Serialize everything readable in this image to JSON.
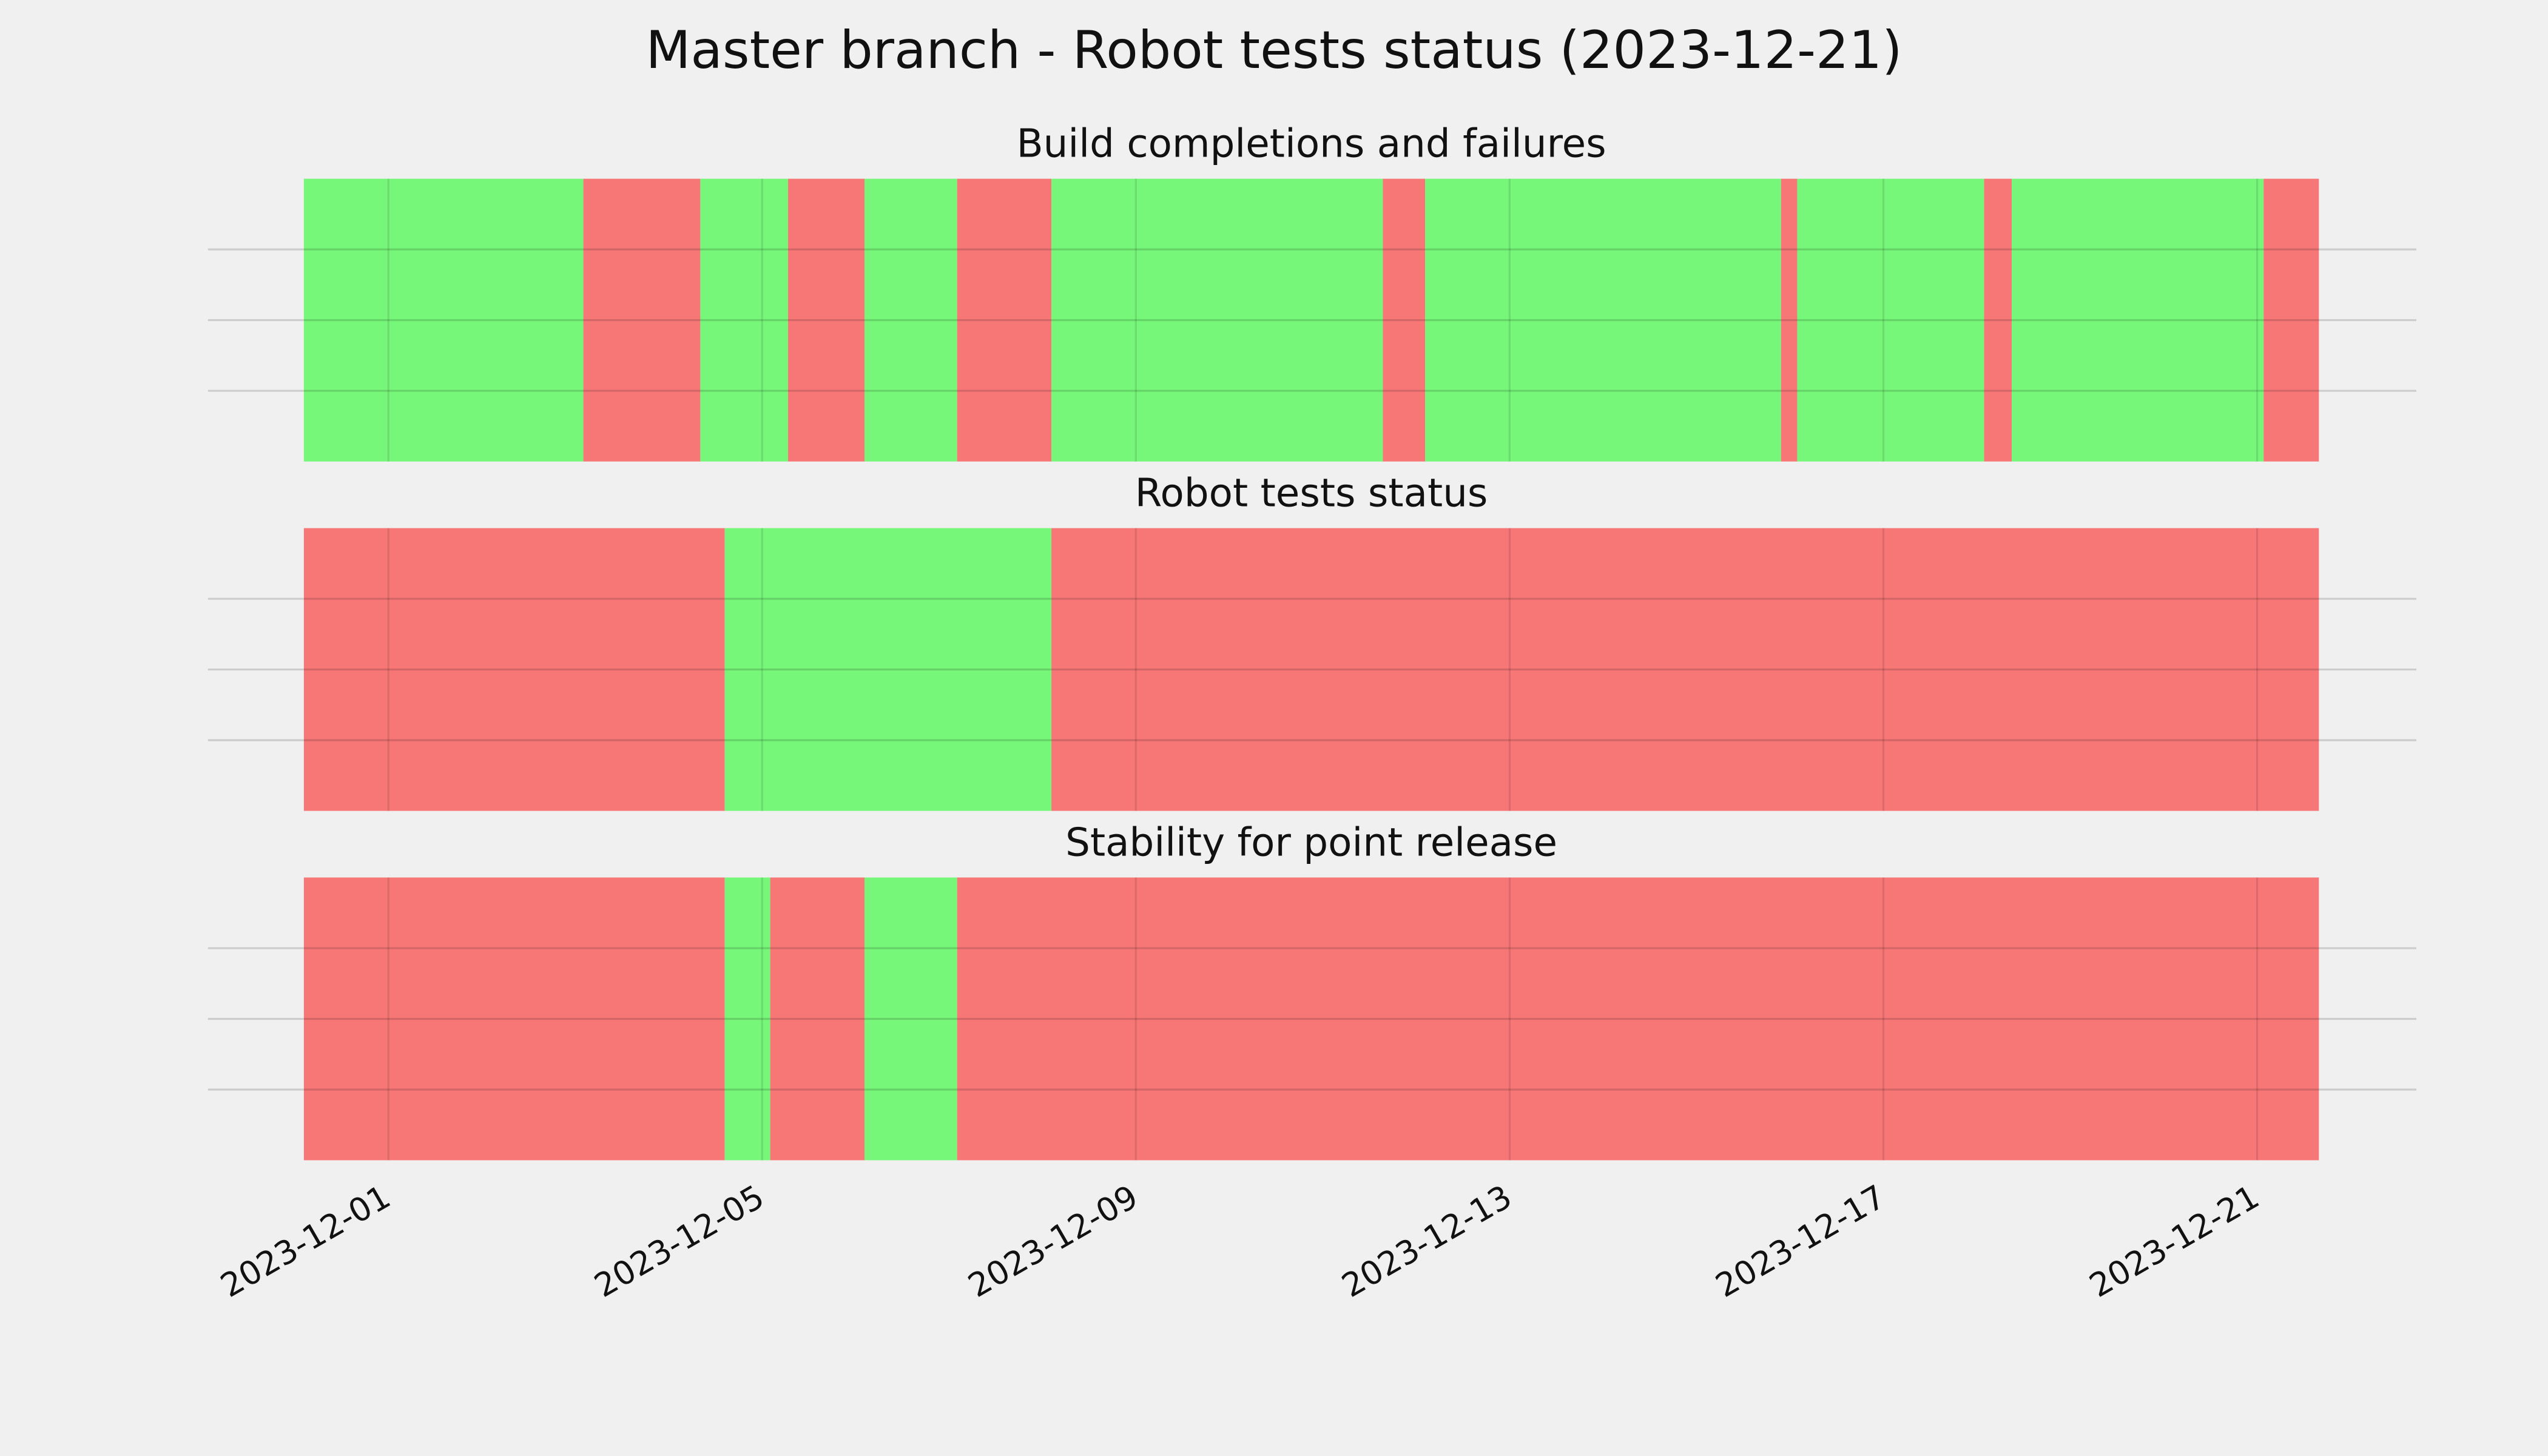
{
  "chart_data": {
    "type": "timeline",
    "title": "Master branch - Robot tests status (2023-12-21)",
    "xlim": [
      "2023-11-30T02:18",
      "2023-12-21T15:51"
    ],
    "xticks": [
      "2023-12-01",
      "2023-12-05",
      "2023-12-09",
      "2023-12-13",
      "2023-12-17",
      "2023-12-21"
    ],
    "ylim": [
      0,
      1
    ],
    "yticks": [
      0.25,
      0.5,
      0.75
    ],
    "grid": true,
    "panels": [
      {
        "title": "Build completions and failures",
        "segments": [
          {
            "start": "2023-11-30T02:18",
            "end": "2023-12-03T02:05",
            "color": "#77f77a"
          },
          {
            "start": "2023-12-03T02:05",
            "end": "2023-12-04T08:08",
            "color": "#f77777"
          },
          {
            "start": "2023-12-04T08:08",
            "end": "2023-12-05T06:40",
            "color": "#77f77a"
          },
          {
            "start": "2023-12-05T06:40",
            "end": "2023-12-06T02:18",
            "color": "#f77777"
          },
          {
            "start": "2023-12-06T02:18",
            "end": "2023-12-07T02:05",
            "color": "#77f77a"
          },
          {
            "start": "2023-12-07T02:05",
            "end": "2023-12-08T02:18",
            "color": "#f77777"
          },
          {
            "start": "2023-12-08T02:18",
            "end": "2023-12-11T15:26",
            "color": "#77f77a"
          },
          {
            "start": "2023-12-11T15:26",
            "end": "2023-12-12T02:18",
            "color": "#f77777"
          },
          {
            "start": "2023-12-12T02:18",
            "end": "2023-12-15T21:42",
            "color": "#77f77a"
          },
          {
            "start": "2023-12-15T21:42",
            "end": "2023-12-16T01:52",
            "color": "#f77777"
          },
          {
            "start": "2023-12-16T01:52",
            "end": "2023-12-18T01:52",
            "color": "#77f77a"
          },
          {
            "start": "2023-12-18T01:52",
            "end": "2023-12-18T08:58",
            "color": "#f77777"
          },
          {
            "start": "2023-12-18T08:58",
            "end": "2023-12-21T01:40",
            "color": "#77f77a"
          },
          {
            "start": "2023-12-21T01:40",
            "end": "2023-12-21T15:51",
            "color": "#f77777"
          }
        ]
      },
      {
        "title": "Robot tests status",
        "segments": [
          {
            "start": "2023-11-30T02:18",
            "end": "2023-12-04T14:24",
            "color": "#f77777"
          },
          {
            "start": "2023-12-04T14:24",
            "end": "2023-12-08T02:18",
            "color": "#77f77a"
          },
          {
            "start": "2023-12-08T02:18",
            "end": "2023-12-21T15:51",
            "color": "#f77777"
          }
        ]
      },
      {
        "title": "Stability for point release",
        "segments": [
          {
            "start": "2023-11-30T02:18",
            "end": "2023-12-04T14:24",
            "color": "#f77777"
          },
          {
            "start": "2023-12-04T14:24",
            "end": "2023-12-05T02:05",
            "color": "#77f77a"
          },
          {
            "start": "2023-12-05T02:05",
            "end": "2023-12-06T02:18",
            "color": "#f77777"
          },
          {
            "start": "2023-12-06T02:18",
            "end": "2023-12-07T02:05",
            "color": "#77f77a"
          },
          {
            "start": "2023-12-07T02:05",
            "end": "2023-12-21T15:51",
            "color": "#f77777"
          }
        ]
      }
    ]
  }
}
